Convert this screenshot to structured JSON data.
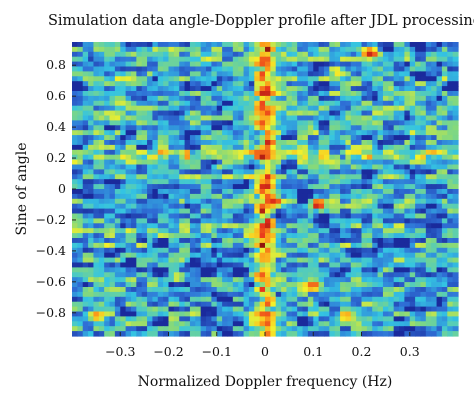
{
  "chart_data": {
    "type": "heatmap",
    "title": "Simulation data angle-Doppler profile after JDL processing",
    "xlabel": "Normalized Doppler frequency (Hz)",
    "ylabel": "Sine of angle",
    "xlim": [
      -0.4,
      0.4
    ],
    "ylim": [
      -0.95,
      0.95
    ],
    "x_ticks": [
      -0.3,
      -0.2,
      -0.1,
      0,
      0.1,
      0.2,
      0.3
    ],
    "x_tick_labels": [
      "−0.3",
      "−0.2",
      "−0.1",
      "0",
      "0.1",
      "0.2",
      "0.3"
    ],
    "y_ticks": [
      0.8,
      0.6,
      0.4,
      0.2,
      0,
      -0.2,
      -0.4,
      -0.6,
      -0.8
    ],
    "y_tick_labels": [
      "0.8",
      "0.6",
      "0.4",
      "0.2",
      "0",
      "−0.2",
      "−0.4",
      "−0.6",
      "−0.8"
    ],
    "grid": false,
    "legend": "none",
    "colormap": "jet",
    "colormap_stops": [
      "#1a2a9c",
      "#2f6fd6",
      "#34c4e2",
      "#86d97a",
      "#f4f02a",
      "#fb9a1a",
      "#e8301c",
      "#7a0f0a"
    ],
    "background_level": 0.28,
    "background_noise": 0.2,
    "ridge": {
      "doppler": 0,
      "description": "bright vertical clutter ridge"
    },
    "band": {
      "sine": 0.22,
      "level": 0.45
    },
    "hotspots": [
      {
        "x": 0.0,
        "y": 0.83,
        "value": 0.85
      },
      {
        "x": 0.0,
        "y": 0.63,
        "value": 0.95
      },
      {
        "x": 0.0,
        "y": 0.45,
        "value": 0.7
      },
      {
        "x": 0.0,
        "y": 0.22,
        "value": 0.8
      },
      {
        "x": 0.0,
        "y": 0.02,
        "value": 0.92
      },
      {
        "x": 0.02,
        "y": -0.08,
        "value": 0.88
      },
      {
        "x": 0.0,
        "y": -0.45,
        "value": 0.7
      },
      {
        "x": -0.01,
        "y": -0.57,
        "value": 0.75
      },
      {
        "x": -0.02,
        "y": -0.82,
        "value": 0.6
      },
      {
        "x": 0.11,
        "y": -0.1,
        "value": 1.0
      },
      {
        "x": 0.22,
        "y": 0.88,
        "value": 0.95
      },
      {
        "x": 0.1,
        "y": -0.62,
        "value": 0.85
      },
      {
        "x": -0.3,
        "y": 0.57,
        "value": 0.6
      },
      {
        "x": -0.31,
        "y": 0.45,
        "value": 0.6
      },
      {
        "x": 0.15,
        "y": 0.75,
        "value": 0.6
      },
      {
        "x": -0.35,
        "y": -0.82,
        "value": 0.75
      },
      {
        "x": 0.17,
        "y": -0.82,
        "value": 0.7
      },
      {
        "x": -0.18,
        "y": -0.57,
        "value": 0.6
      }
    ]
  }
}
